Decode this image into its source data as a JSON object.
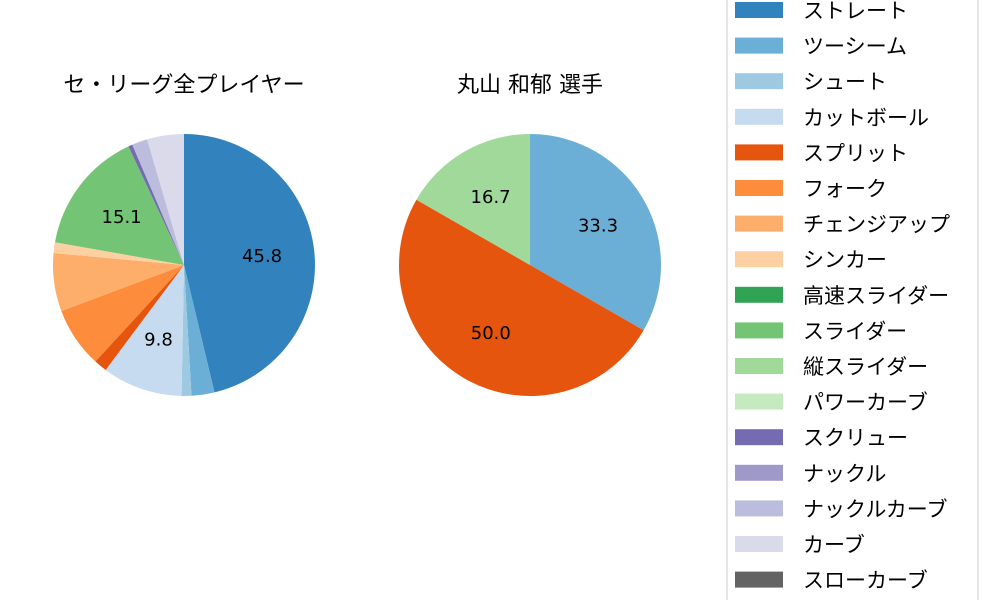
{
  "chart_data": [
    {
      "type": "pie",
      "title": "セ・リーグ全プレイヤー",
      "categories": [
        "ストレート",
        "ツーシーム",
        "シュート",
        "カットボール",
        "スプリット",
        "フォーク",
        "チェンジアップ",
        "シンカー",
        "高速スライダー",
        "スライダー",
        "縦スライダー",
        "パワーカーブ",
        "スクリュー",
        "ナックル",
        "ナックルカーブ",
        "カーブ",
        "スローカーブ"
      ],
      "values": [
        45.8,
        2.8,
        1.2,
        9.8,
        1.6,
        7.4,
        7.1,
        1.3,
        0,
        15.1,
        0,
        0,
        0.5,
        0,
        1.9,
        4.5,
        0
      ],
      "labels": [
        "45.8",
        "",
        "",
        "9.8",
        "",
        "",
        "",
        "",
        "",
        "15.1",
        "",
        "",
        "",
        "",
        "",
        "",
        ""
      ],
      "start_angle": 90,
      "direction": "clockwise"
    },
    {
      "type": "pie",
      "title": "丸山 和郁  選手",
      "categories": [
        "ツーシーム",
        "スプリット",
        "縦スライダー"
      ],
      "values": [
        33.3,
        50.0,
        16.7
      ],
      "labels": [
        "33.3",
        "50.0",
        "16.7"
      ],
      "start_angle": 90,
      "direction": "clockwise"
    }
  ],
  "legend": {
    "placement": "right",
    "items": [
      {
        "label": "ストレート",
        "color": "#3182bd"
      },
      {
        "label": "ツーシーム",
        "color": "#6baed6"
      },
      {
        "label": "シュート",
        "color": "#9ecae1"
      },
      {
        "label": "カットボール",
        "color": "#c6dbef"
      },
      {
        "label": "スプリット",
        "color": "#e6550d"
      },
      {
        "label": "フォーク",
        "color": "#fd8d3c"
      },
      {
        "label": "チェンジアップ",
        "color": "#fdae6b"
      },
      {
        "label": "シンカー",
        "color": "#fdd0a2"
      },
      {
        "label": "高速スライダー",
        "color": "#31a354"
      },
      {
        "label": "スライダー",
        "color": "#74c476"
      },
      {
        "label": "縦スライダー",
        "color": "#a1d99b"
      },
      {
        "label": "パワーカーブ",
        "color": "#c7e9c0"
      },
      {
        "label": "スクリュー",
        "color": "#756bb1"
      },
      {
        "label": "ナックル",
        "color": "#9e9ac8"
      },
      {
        "label": "ナックルカーブ",
        "color": "#bcbddc"
      },
      {
        "label": "カーブ",
        "color": "#dadaeb"
      },
      {
        "label": "スローカーブ",
        "color": "#636363"
      }
    ]
  }
}
